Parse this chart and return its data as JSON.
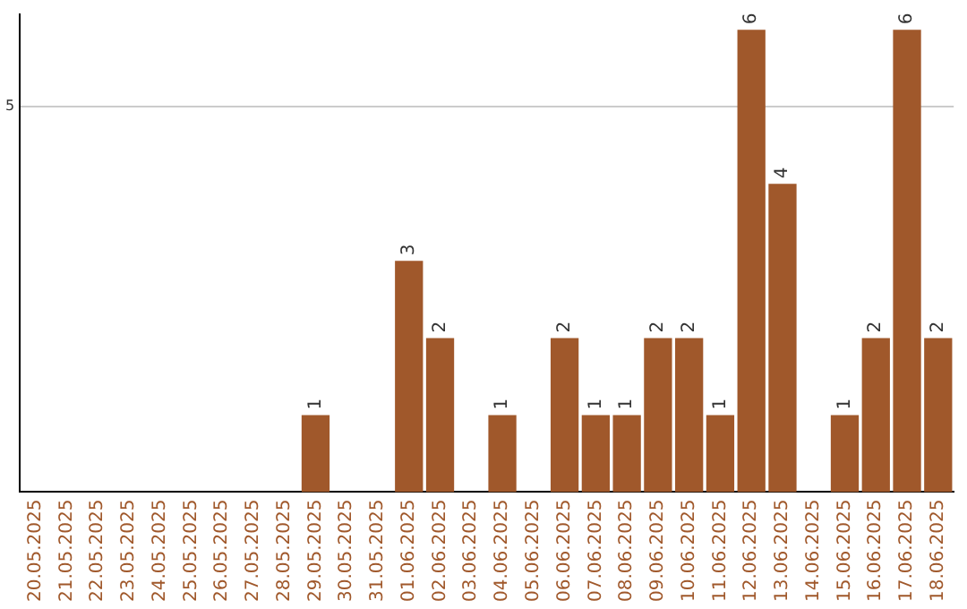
{
  "chart_data": {
    "type": "bar",
    "categories": [
      "20.05.2025",
      "21.05.2025",
      "22.05.2025",
      "23.05.2025",
      "24.05.2025",
      "25.05.2025",
      "26.05.2025",
      "27.05.2025",
      "28.05.2025",
      "29.05.2025",
      "30.05.2025",
      "31.05.2025",
      "01.06.2025",
      "02.06.2025",
      "03.06.2025",
      "04.06.2025",
      "05.06.2025",
      "06.06.2025",
      "07.06.2025",
      "08.06.2025",
      "09.06.2025",
      "10.06.2025",
      "11.06.2025",
      "12.06.2025",
      "13.06.2025",
      "14.06.2025",
      "15.06.2025",
      "16.06.2025",
      "17.06.2025",
      "18.06.2025"
    ],
    "values": [
      0,
      0,
      0,
      0,
      0,
      0,
      0,
      0,
      0,
      1,
      0,
      0,
      3,
      2,
      0,
      1,
      0,
      2,
      1,
      1,
      2,
      2,
      1,
      6,
      4,
      0,
      1,
      2,
      6,
      2
    ],
    "value_labels": [
      null,
      null,
      null,
      null,
      null,
      null,
      null,
      null,
      null,
      "1",
      null,
      null,
      "3",
      "2",
      null,
      "1",
      null,
      "2",
      "1",
      "1",
      "2",
      "2",
      "1",
      "6",
      "4",
      null,
      "1",
      "2",
      "6",
      "2"
    ],
    "color": "#a0582b",
    "ylim": [
      0,
      6.2
    ],
    "yticks": [
      5
    ],
    "grid": "y"
  }
}
